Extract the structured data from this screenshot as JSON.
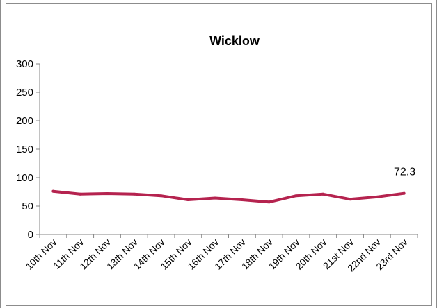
{
  "chart_data": {
    "type": "line",
    "title": "Wicklow",
    "categories": [
      "10th Nov",
      "11th Nov",
      "12th Nov",
      "13th Nov",
      "14th Nov",
      "15th Nov",
      "16th Nov",
      "17th Nov",
      "18th Nov",
      "19th Nov",
      "20th Nov",
      "21st Nov",
      "22nd Nov",
      "23rd  Nov"
    ],
    "series": [
      {
        "values": [
          76,
          71,
          72,
          71,
          68,
          61,
          64,
          61,
          57,
          68,
          71,
          62,
          66,
          72.3
        ],
        "color": "#b5234f"
      }
    ],
    "ylim": [
      0,
      300
    ],
    "yticks": [
      "0",
      "50",
      "100",
      "150",
      "200",
      "250",
      "300"
    ],
    "data_labels": [
      {
        "index": 13,
        "text": "72.3"
      }
    ],
    "grid": false,
    "legend": "none"
  }
}
